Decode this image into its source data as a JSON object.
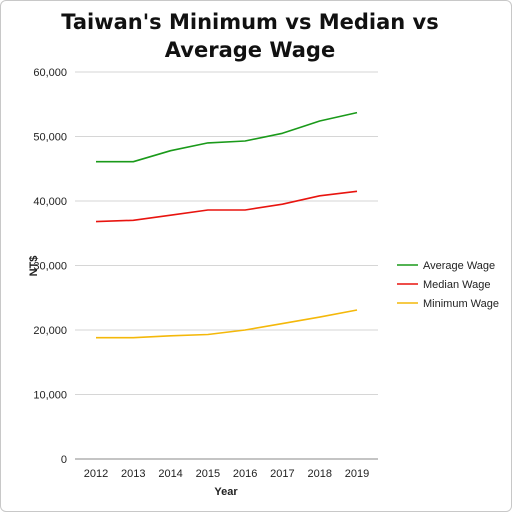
{
  "chart_data": {
    "type": "line",
    "title": "Taiwan's Minimum vs Median vs Average Wage",
    "xlabel": "Year",
    "ylabel": "NT$",
    "categories": [
      "2012",
      "2013",
      "2014",
      "2015",
      "2016",
      "2017",
      "2018",
      "2019"
    ],
    "ylim": [
      0,
      60000
    ],
    "yticks": [
      0,
      10000,
      20000,
      30000,
      40000,
      50000,
      60000
    ],
    "ytick_labels": [
      "0",
      "10,000",
      "20,000",
      "30,000",
      "40,000",
      "50,000",
      "60,000"
    ],
    "grid": true,
    "legend_position": "right",
    "series": [
      {
        "name": "Average Wage",
        "color": "#1a9a1a",
        "values": [
          46100,
          46100,
          47800,
          49000,
          49300,
          50500,
          52400,
          53700
        ]
      },
      {
        "name": "Median Wage",
        "color": "#e8140f",
        "values": [
          36800,
          37000,
          37800,
          38600,
          38600,
          39500,
          40800,
          41500
        ]
      },
      {
        "name": "Minimum Wage",
        "color": "#f4b80a",
        "values": [
          18800,
          18800,
          19100,
          19300,
          20000,
          21000,
          22000,
          23100
        ]
      }
    ]
  }
}
